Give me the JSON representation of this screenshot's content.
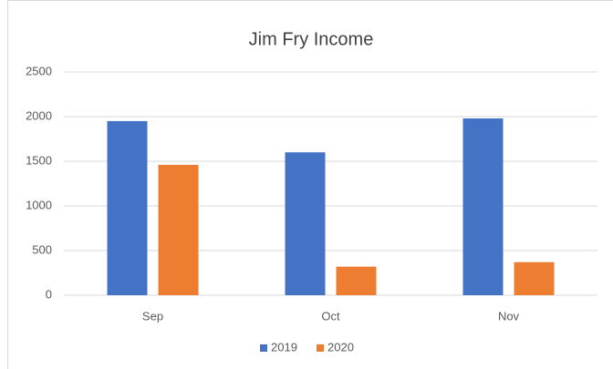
{
  "chart_data": {
    "type": "bar",
    "title": "Jim Fry Income",
    "categories": [
      "Sep",
      "Oct",
      "Nov"
    ],
    "series": [
      {
        "name": "2019",
        "color": "#4472c4",
        "values": [
          1950,
          1600,
          1980
        ]
      },
      {
        "name": "2020",
        "color": "#ed7d31",
        "values": [
          1460,
          320,
          370
        ]
      }
    ],
    "ylim": [
      0,
      2500
    ],
    "yticks": [
      0,
      500,
      1000,
      1500,
      2000,
      2500
    ],
    "grid": true,
    "legend": "bottom"
  }
}
